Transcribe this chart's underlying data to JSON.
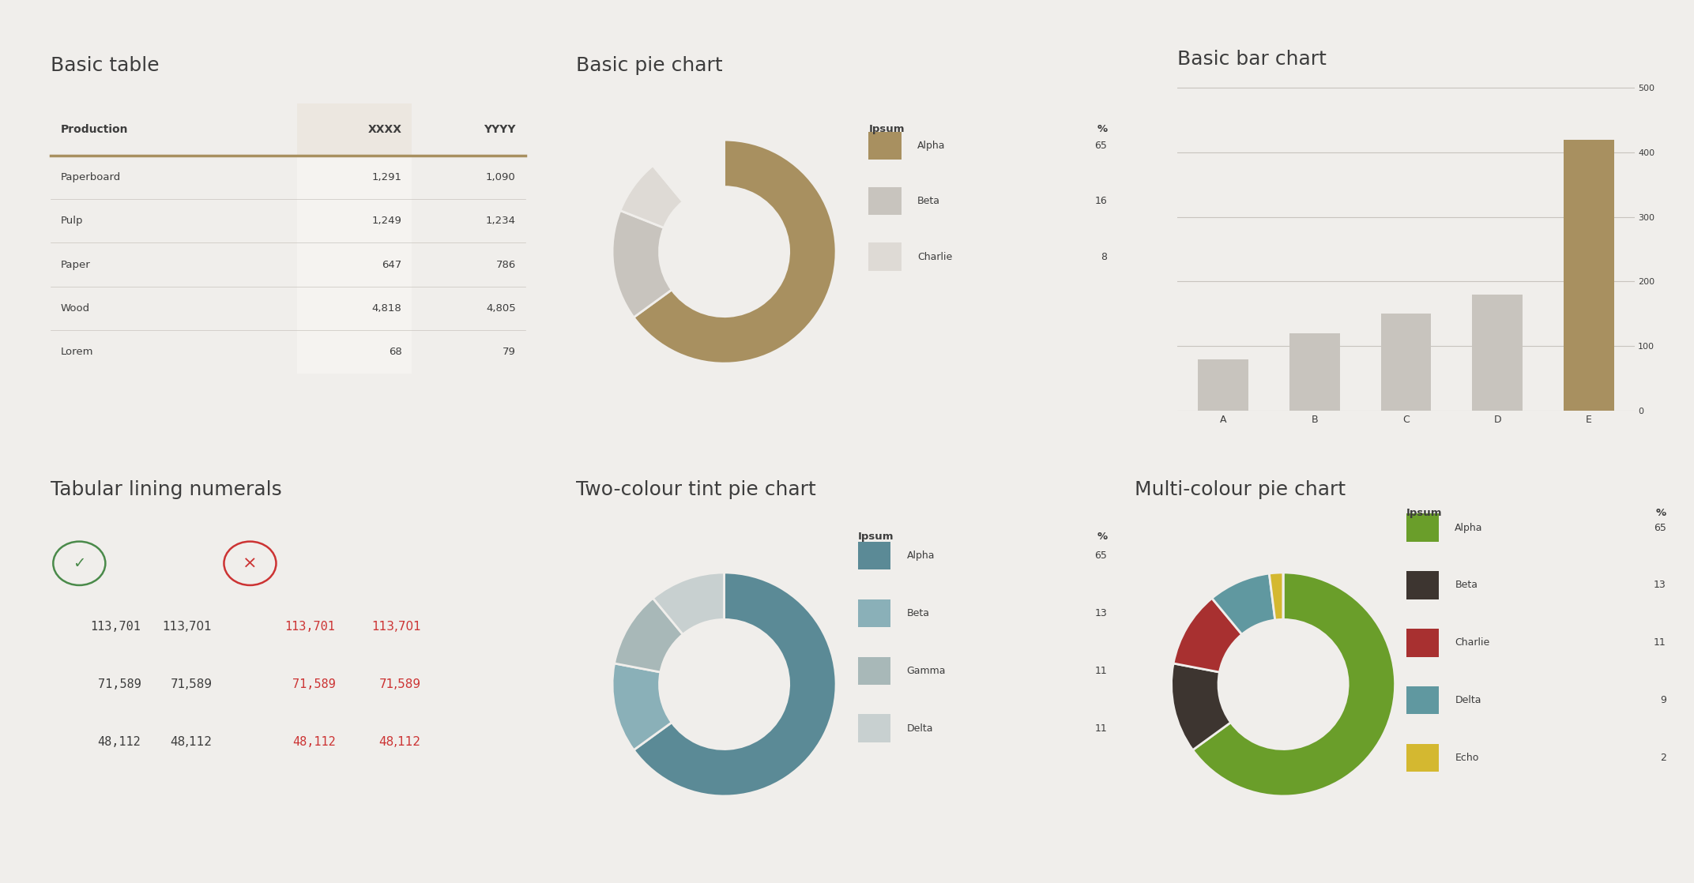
{
  "bg_color": "#f0eeeb",
  "text_color": "#3d3d3d",
  "gold_color": "#a89060",
  "section_titles": [
    "Basic table",
    "Basic pie chart",
    "Basic bar chart",
    "Tabular lining numerals",
    "Two-colour tint pie chart",
    "Multi-colour pie chart"
  ],
  "table": {
    "header": [
      "Production",
      "XXXX",
      "YYYY"
    ],
    "rows": [
      [
        "Paperboard",
        "1,291",
        "1,090"
      ],
      [
        "Pulp",
        "1,249",
        "1,234"
      ],
      [
        "Paper",
        "647",
        "786"
      ],
      [
        "Wood",
        "4,818",
        "4,805"
      ],
      [
        "Lorem",
        "68",
        "79"
      ]
    ],
    "header_bg": "#ece7e0",
    "row_bg_alt": "#f5f3f0"
  },
  "basic_pie": {
    "labels": [
      "Alpha",
      "Beta",
      "Charlie"
    ],
    "values": [
      65,
      16,
      8
    ],
    "colors": [
      "#a89060",
      "#c8c4be",
      "#dedad5"
    ],
    "legend_header": [
      "Ipsum",
      "%"
    ]
  },
  "bar_chart": {
    "categories": [
      "A",
      "B",
      "C",
      "D",
      "E"
    ],
    "values": [
      80,
      120,
      150,
      180,
      420
    ],
    "bar_color": "#c8c4be",
    "highlight_color": "#a89060",
    "yticks": [
      0,
      100,
      200,
      300,
      400,
      500
    ],
    "ylim": [
      0,
      520
    ]
  },
  "tabular": {
    "correct_color": "#4a8a4a",
    "incorrect_color": "#cc3333",
    "numbers": [
      "113,701",
      "71,589",
      "48,112"
    ]
  },
  "two_pie": {
    "labels": [
      "Alpha",
      "Beta",
      "Gamma",
      "Delta"
    ],
    "values": [
      65,
      13,
      11,
      11
    ],
    "colors": [
      "#5b8a96",
      "#8ab0b8",
      "#a8b8b8",
      "#c8d0d0"
    ],
    "legend_header": [
      "Ipsum",
      "%"
    ]
  },
  "multi_pie": {
    "labels": [
      "Alpha",
      "Beta",
      "Charlie",
      "Delta",
      "Echo"
    ],
    "values": [
      65,
      13,
      11,
      9,
      2
    ],
    "colors": [
      "#6a9e2a",
      "#3d3530",
      "#a83030",
      "#6098a0",
      "#d4b830"
    ],
    "legend_header": [
      "Ipsum",
      "%"
    ]
  }
}
